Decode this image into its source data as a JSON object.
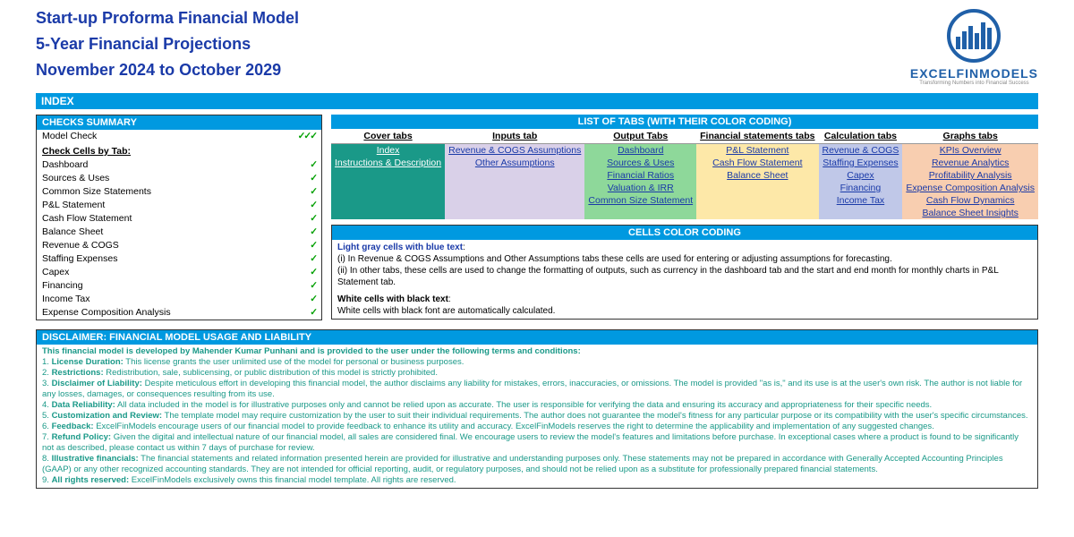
{
  "header": {
    "title1": "Start-up Proforma Financial Model",
    "title2": "5-Year Financial Projections",
    "title3": "November 2024 to October 2029",
    "logo_text": "EXCELFINMODELS",
    "logo_sub": "Transforming Numbers into Financial Success"
  },
  "index_label": "INDEX",
  "checks": {
    "header": "CHECKS  SUMMARY",
    "model_check": "Model Check",
    "model_check_marks": "✓✓✓",
    "subheader": "Check Cells by Tab:",
    "items": [
      "Dashboard",
      "Sources & Uses",
      "Common Size Statements",
      "P&L Statement",
      "Cash Flow Statement",
      "Balance Sheet",
      "Revenue & COGS",
      "Staffing Expenses",
      "Capex",
      "Financing",
      "Income Tax",
      "Expense Composition Analysis"
    ],
    "mark": "✓"
  },
  "tabs": {
    "header": "LIST OF TABS (WITH THEIR COLOR CODING)",
    "columns": [
      "Cover tabs",
      "Inputs tab",
      "Output Tabs",
      "Financial statements tabs",
      "Calculation tabs",
      "Graphs tabs"
    ],
    "rows": [
      [
        "Index",
        "Revenue & COGS Assumptions",
        "Dashboard",
        "P&L Statement",
        "Revenue & COGS",
        "KPIs Overview"
      ],
      [
        "Instructions & Description",
        "Other Assumptions",
        "Sources & Uses",
        "Cash Flow Statement",
        "Staffing Expenses",
        "Revenue Analytics"
      ],
      [
        "",
        "",
        "Financial Ratios",
        "Balance Sheet",
        "Capex",
        "Profitability Analysis"
      ],
      [
        "",
        "",
        "Valuation & IRR",
        "",
        "Financing",
        "Expense Composition Analysis"
      ],
      [
        "",
        "",
        "Common Size Statement",
        "",
        "Income Tax",
        "Cash Flow Dynamics"
      ],
      [
        "",
        "",
        "",
        "",
        "",
        "Balance Sheet Insights"
      ]
    ],
    "col_classes": [
      "col-cover",
      "col-inputs",
      "col-output",
      "col-fin",
      "col-calc",
      "col-graphs"
    ]
  },
  "color_coding": {
    "header": "CELLS COLOR CODING",
    "line1_label": "Light gray cells with blue text",
    "line1a": "(i) In Revenue & COGS Assumptions and Other Assumptions tabs these cells are used for entering or adjusting assumptions for forecasting.",
    "line1b": "(ii) In other tabs, these cells are used to change the formatting of outputs, such as currency in the dashboard tab and the start and end month for monthly charts in P&L Statement tab.",
    "line2_label": "White cells with black text",
    "line2": "White cells with black font are automatically calculated."
  },
  "disclaimer": {
    "header": "DISCLAIMER: FINANCIAL MODEL USAGE AND LIABILITY",
    "intro": "This financial model  is developed by Mahender Kumar Punhani and is provided to the user under the following terms and conditions:",
    "items": [
      {
        "n": "1.",
        "b": "License Duration:",
        "t": " This license grants the user unlimited use of the model for personal or business purposes."
      },
      {
        "n": "2.",
        "b": "Restrictions:",
        "t": " Redistribution, sale, sublicensing, or public distribution of this model is strictly prohibited."
      },
      {
        "n": "3.",
        "b": "Disclaimer of Liability:",
        "t": " Despite meticulous effort in developing this financial model, the author disclaims any liability for mistakes, errors, inaccuracies, or omissions. The model is provided \"as is,\" and its use is at the user's own risk. The author is  not liable for any  losses, damages, or consequences resulting from its use."
      },
      {
        "n": "4.",
        "b": "Data Reliability:",
        "t": " All data included in the model is for illustrative purposes only and cannot be relied upon as accurate. The user is  responsible for verifying the data and ensuring its accuracy and appropriateness for their specific needs."
      },
      {
        "n": "5.",
        "b": "Customization and Review:",
        "t": " The template model may require customization by the user to suit their individual requirements. The author does not guarantee the model's fitness for any  particular purpose or its compatibility with the user's specific circumstances."
      },
      {
        "n": "6.",
        "b": "Feedback:",
        "t": " ExcelFinModels encourage users of our financial model to provide feedback to enhance its utility and accuracy. ExcelFinModels reserves the right to determine the applicability and implementation of any suggested changes."
      },
      {
        "n": "7.",
        "b": "Refund Policy:",
        "t": " Given the digital and intellectual nature of our financial model, all sales are considered final. We encourage users to review the model's features and limitations before purchase. In exceptional cases where a product is found to be  significantly not as described, please contact us within 7 days of purchase for review."
      },
      {
        "n": "8.",
        "b": "Illustrative financials:",
        "t": " The financial statements and related information presented herein are provided for illustrative and understanding purposes only. These statements may not be prepared in accordance with Generally Accepted Accounting Principles (GAAP) or any other  recognized accounting standards. They are not intended for official reporting, audit, or regulatory purposes, and should not be relied upon as a substitute for professionally prepared financial statements."
      },
      {
        "n": "9.",
        "b": "All rights reserved:",
        "t": " ExcelFinModels exclusively owns this financial model template. All rights are reserved."
      }
    ]
  }
}
